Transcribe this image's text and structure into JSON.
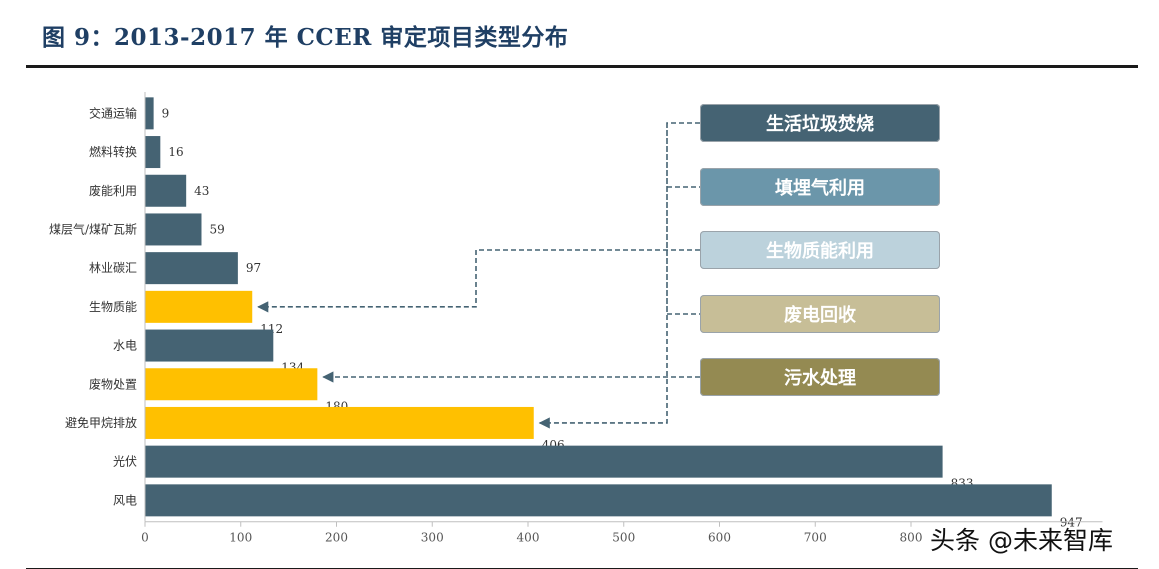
{
  "figure": {
    "title": "图 9：2013-2017 年 CCER 审定项目类型分布"
  },
  "watermark": "头条 @未来智库",
  "colors": {
    "default_bar": "#456373",
    "highlight_bar": "#FFC000",
    "connector": "#456373"
  },
  "legend": [
    {
      "label": "生活垃圾焚烧",
      "bg": "#456373",
      "fg": "#ffffff"
    },
    {
      "label": "填埋气利用",
      "bg": "#6B96AA",
      "fg": "#ffffff"
    },
    {
      "label": "生物质能利用",
      "bg": "#BCD2DC",
      "fg": "#ffffff"
    },
    {
      "label": "废电回收",
      "bg": "#C7BE97",
      "fg": "#ffffff"
    },
    {
      "label": "污水处理",
      "bg": "#948A52",
      "fg": "#ffffff"
    }
  ],
  "chart_data": {
    "type": "bar",
    "orientation": "horizontal",
    "title": "",
    "xlabel": "",
    "ylabel": "",
    "xlim": [
      0,
      1000
    ],
    "xticks": [
      0,
      100,
      200,
      300,
      400,
      500,
      600,
      700,
      800
    ],
    "categories": [
      "交通运输",
      "燃料转换",
      "废能利用",
      "煤层气/煤矿瓦斯",
      "林业碳汇",
      "生物质能",
      "水电",
      "废物处置",
      "避免甲烷排放",
      "光伏",
      "风电"
    ],
    "values": [
      9,
      16,
      43,
      59,
      97,
      112,
      134,
      180,
      406,
      833,
      947
    ],
    "highlighted": [
      "生物质能",
      "废物处置",
      "避免甲烷排放"
    ],
    "grid": false
  }
}
